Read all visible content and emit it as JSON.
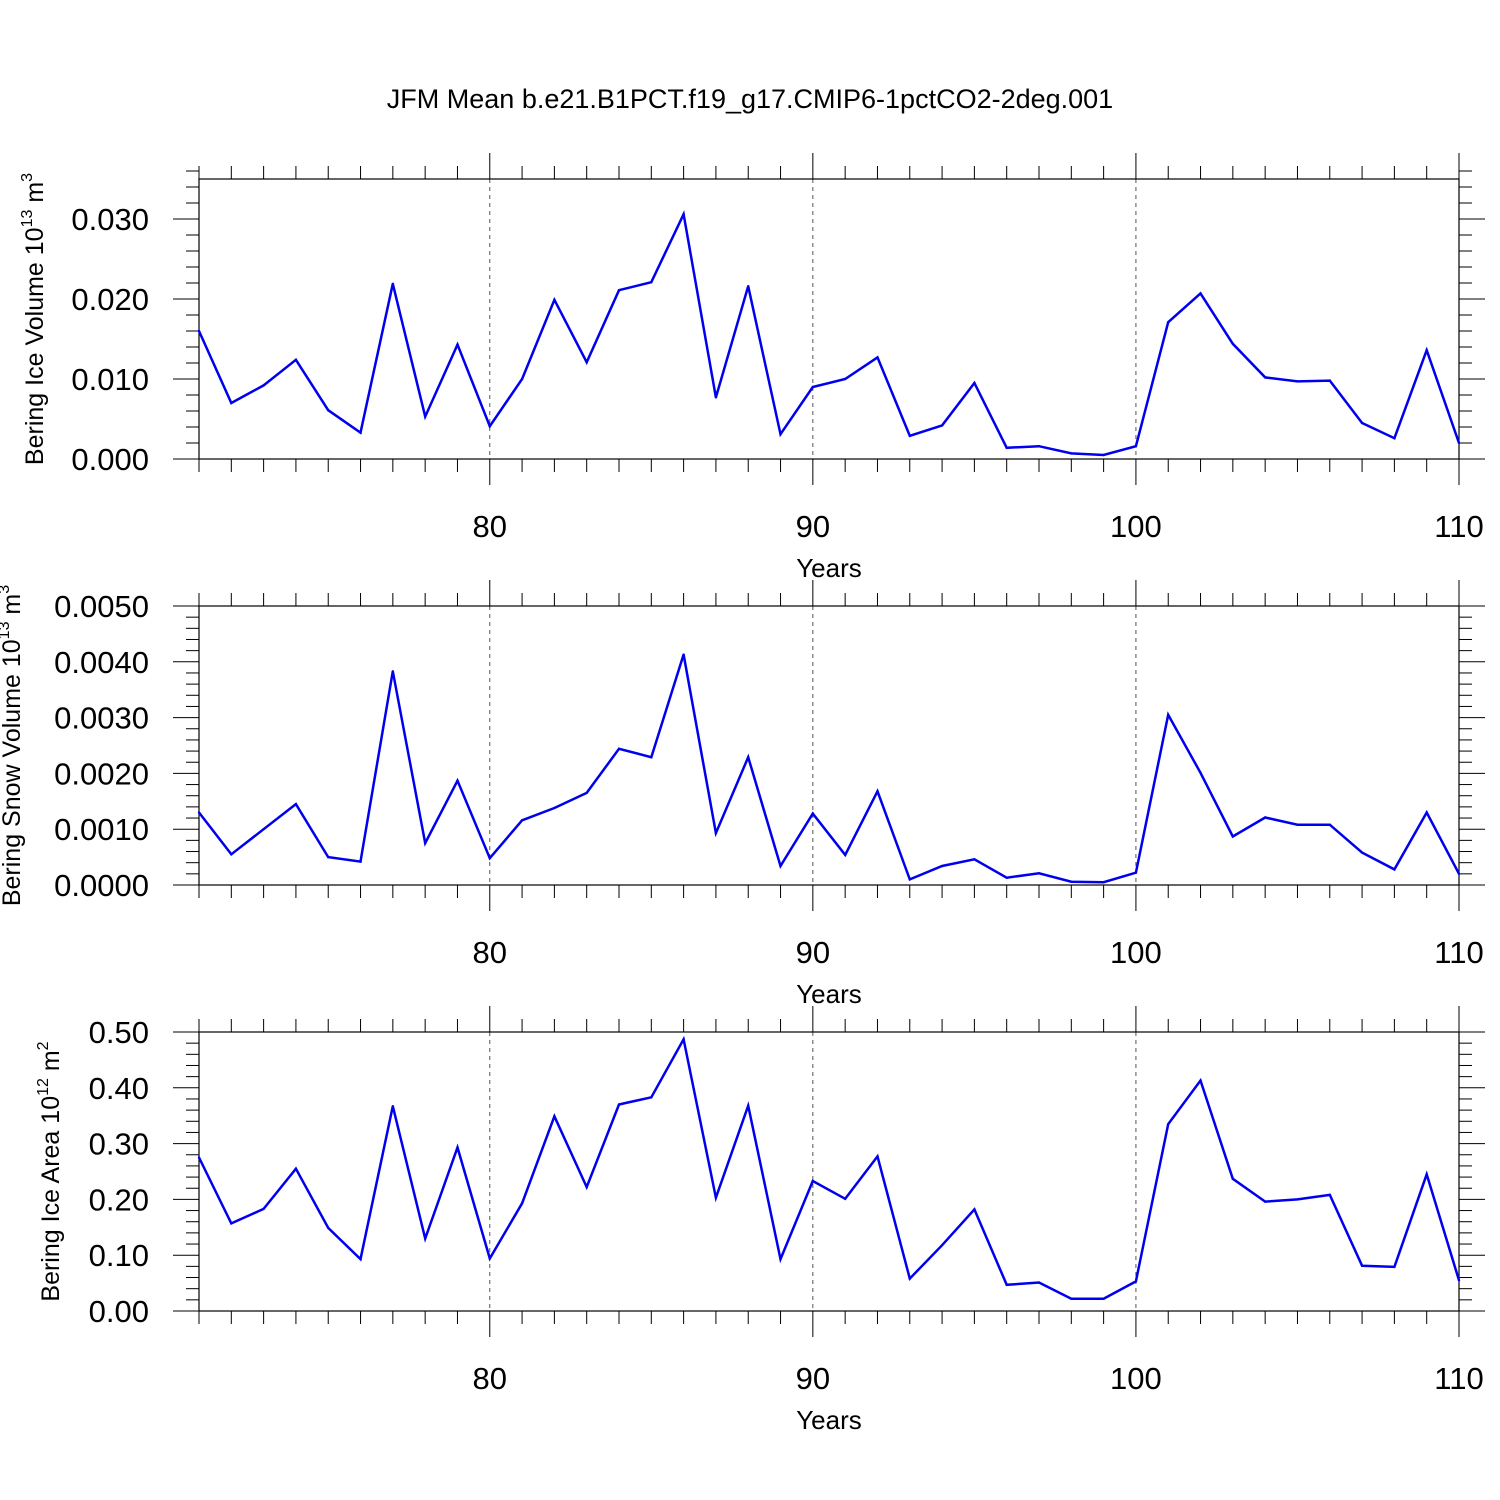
{
  "figure": {
    "title": "JFM Mean b.e21.B1PCT.f19_g17.CMIP6-1pctCO2-2deg.001"
  },
  "colors": {
    "line": "#0000ee",
    "axis": "#000000",
    "grid": "#555555"
  },
  "chart_data": [
    {
      "type": "line",
      "ylabel": {
        "base": "Bering Ice Volume 10",
        "exp": "13",
        "unit": " m",
        "unit_exp": "3"
      },
      "xlabel": "Years",
      "xlim": [
        71,
        110
      ],
      "ylim": [
        0,
        0.035
      ],
      "xticks": [
        80,
        90,
        100,
        110
      ],
      "xtick_labels": [
        "80",
        "90",
        "100",
        "110"
      ],
      "yticks": [
        0,
        0.01,
        0.02,
        0.03
      ],
      "ytick_labels": [
        "0.000",
        "0.010",
        "0.020",
        "0.030"
      ],
      "grid_x": [
        80,
        90,
        100
      ],
      "series": [
        {
          "x": [
            71,
            72,
            73,
            74,
            75,
            76,
            77,
            78,
            79,
            80,
            81,
            82,
            83,
            84,
            85,
            86,
            87,
            88,
            89,
            90,
            91,
            92,
            93,
            94,
            95,
            96,
            97,
            98,
            99,
            100,
            101,
            102,
            103,
            104,
            105,
            106,
            107,
            108,
            109,
            110
          ],
          "values": [
            0.016,
            0.007,
            0.0092,
            0.0124,
            0.0061,
            0.0033,
            0.0219,
            0.0053,
            0.0143,
            0.0041,
            0.01,
            0.0199,
            0.0121,
            0.0211,
            0.0221,
            0.0306,
            0.0077,
            0.0216,
            0.0031,
            0.009,
            0.01,
            0.0127,
            0.0029,
            0.0042,
            0.0095,
            0.0014,
            0.0016,
            0.0007,
            0.0005,
            0.0016,
            0.0171,
            0.0207,
            0.0144,
            0.0102,
            0.0097,
            0.0098,
            0.0045,
            0.0026,
            0.0136,
            0.002
          ]
        }
      ]
    },
    {
      "type": "line",
      "ylabel": {
        "base": "Bering Snow Volume 10",
        "exp": "13",
        "unit": " m",
        "unit_exp": "3"
      },
      "xlabel": "Years",
      "xlim": [
        71,
        110
      ],
      "ylim": [
        0,
        0.005
      ],
      "xticks": [
        80,
        90,
        100,
        110
      ],
      "xtick_labels": [
        "80",
        "90",
        "100",
        "110"
      ],
      "yticks": [
        0,
        0.001,
        0.002,
        0.003,
        0.004,
        0.005
      ],
      "ytick_labels": [
        "0.0000",
        "0.0010",
        "0.0020",
        "0.0030",
        "0.0040",
        "0.0050"
      ],
      "grid_x": [
        80,
        90,
        100
      ],
      "series": [
        {
          "x": [
            71,
            72,
            73,
            74,
            75,
            76,
            77,
            78,
            79,
            80,
            81,
            82,
            83,
            84,
            85,
            86,
            87,
            88,
            89,
            90,
            91,
            92,
            93,
            94,
            95,
            96,
            97,
            98,
            99,
            100,
            101,
            102,
            103,
            104,
            105,
            106,
            107,
            108,
            109,
            110
          ],
          "values": [
            0.0013,
            0.00055,
            0.001,
            0.00145,
            0.0005,
            0.00042,
            0.00383,
            0.00075,
            0.00187,
            0.00048,
            0.00116,
            0.00138,
            0.00165,
            0.00244,
            0.00229,
            0.00413,
            0.00093,
            0.00229,
            0.00034,
            0.00128,
            0.00054,
            0.00168,
            0.0001,
            0.00034,
            0.00046,
            0.00013,
            0.00021,
            6e-05,
            5e-05,
            0.00022,
            0.00305,
            0.00201,
            0.00087,
            0.00121,
            0.00108,
            0.00108,
            0.00058,
            0.00028,
            0.0013,
            0.0002
          ]
        }
      ]
    },
    {
      "type": "line",
      "ylabel": {
        "base": "Bering Ice Area 10",
        "exp": "12",
        "unit": " m",
        "unit_exp": "2"
      },
      "xlabel": "Years",
      "xlim": [
        71,
        110
      ],
      "ylim": [
        0,
        0.5
      ],
      "xticks": [
        80,
        90,
        100,
        110
      ],
      "xtick_labels": [
        "80",
        "90",
        "100",
        "110"
      ],
      "yticks": [
        0,
        0.1,
        0.2,
        0.3,
        0.4,
        0.5
      ],
      "ytick_labels": [
        "0.00",
        "0.10",
        "0.20",
        "0.30",
        "0.40",
        "0.50"
      ],
      "grid_x": [
        80,
        90,
        100
      ],
      "series": [
        {
          "x": [
            71,
            72,
            73,
            74,
            75,
            76,
            77,
            78,
            79,
            80,
            81,
            82,
            83,
            84,
            85,
            86,
            87,
            88,
            89,
            90,
            91,
            92,
            93,
            94,
            95,
            96,
            97,
            98,
            99,
            100,
            101,
            102,
            103,
            104,
            105,
            106,
            107,
            108,
            109,
            110
          ],
          "values": [
            0.275,
            0.157,
            0.183,
            0.255,
            0.149,
            0.093,
            0.367,
            0.13,
            0.293,
            0.094,
            0.193,
            0.349,
            0.222,
            0.37,
            0.383,
            0.487,
            0.203,
            0.368,
            0.093,
            0.233,
            0.201,
            0.277,
            0.058,
            0.118,
            0.182,
            0.047,
            0.051,
            0.022,
            0.022,
            0.053,
            0.335,
            0.413,
            0.237,
            0.196,
            0.2,
            0.208,
            0.081,
            0.079,
            0.245,
            0.055
          ]
        }
      ]
    }
  ]
}
